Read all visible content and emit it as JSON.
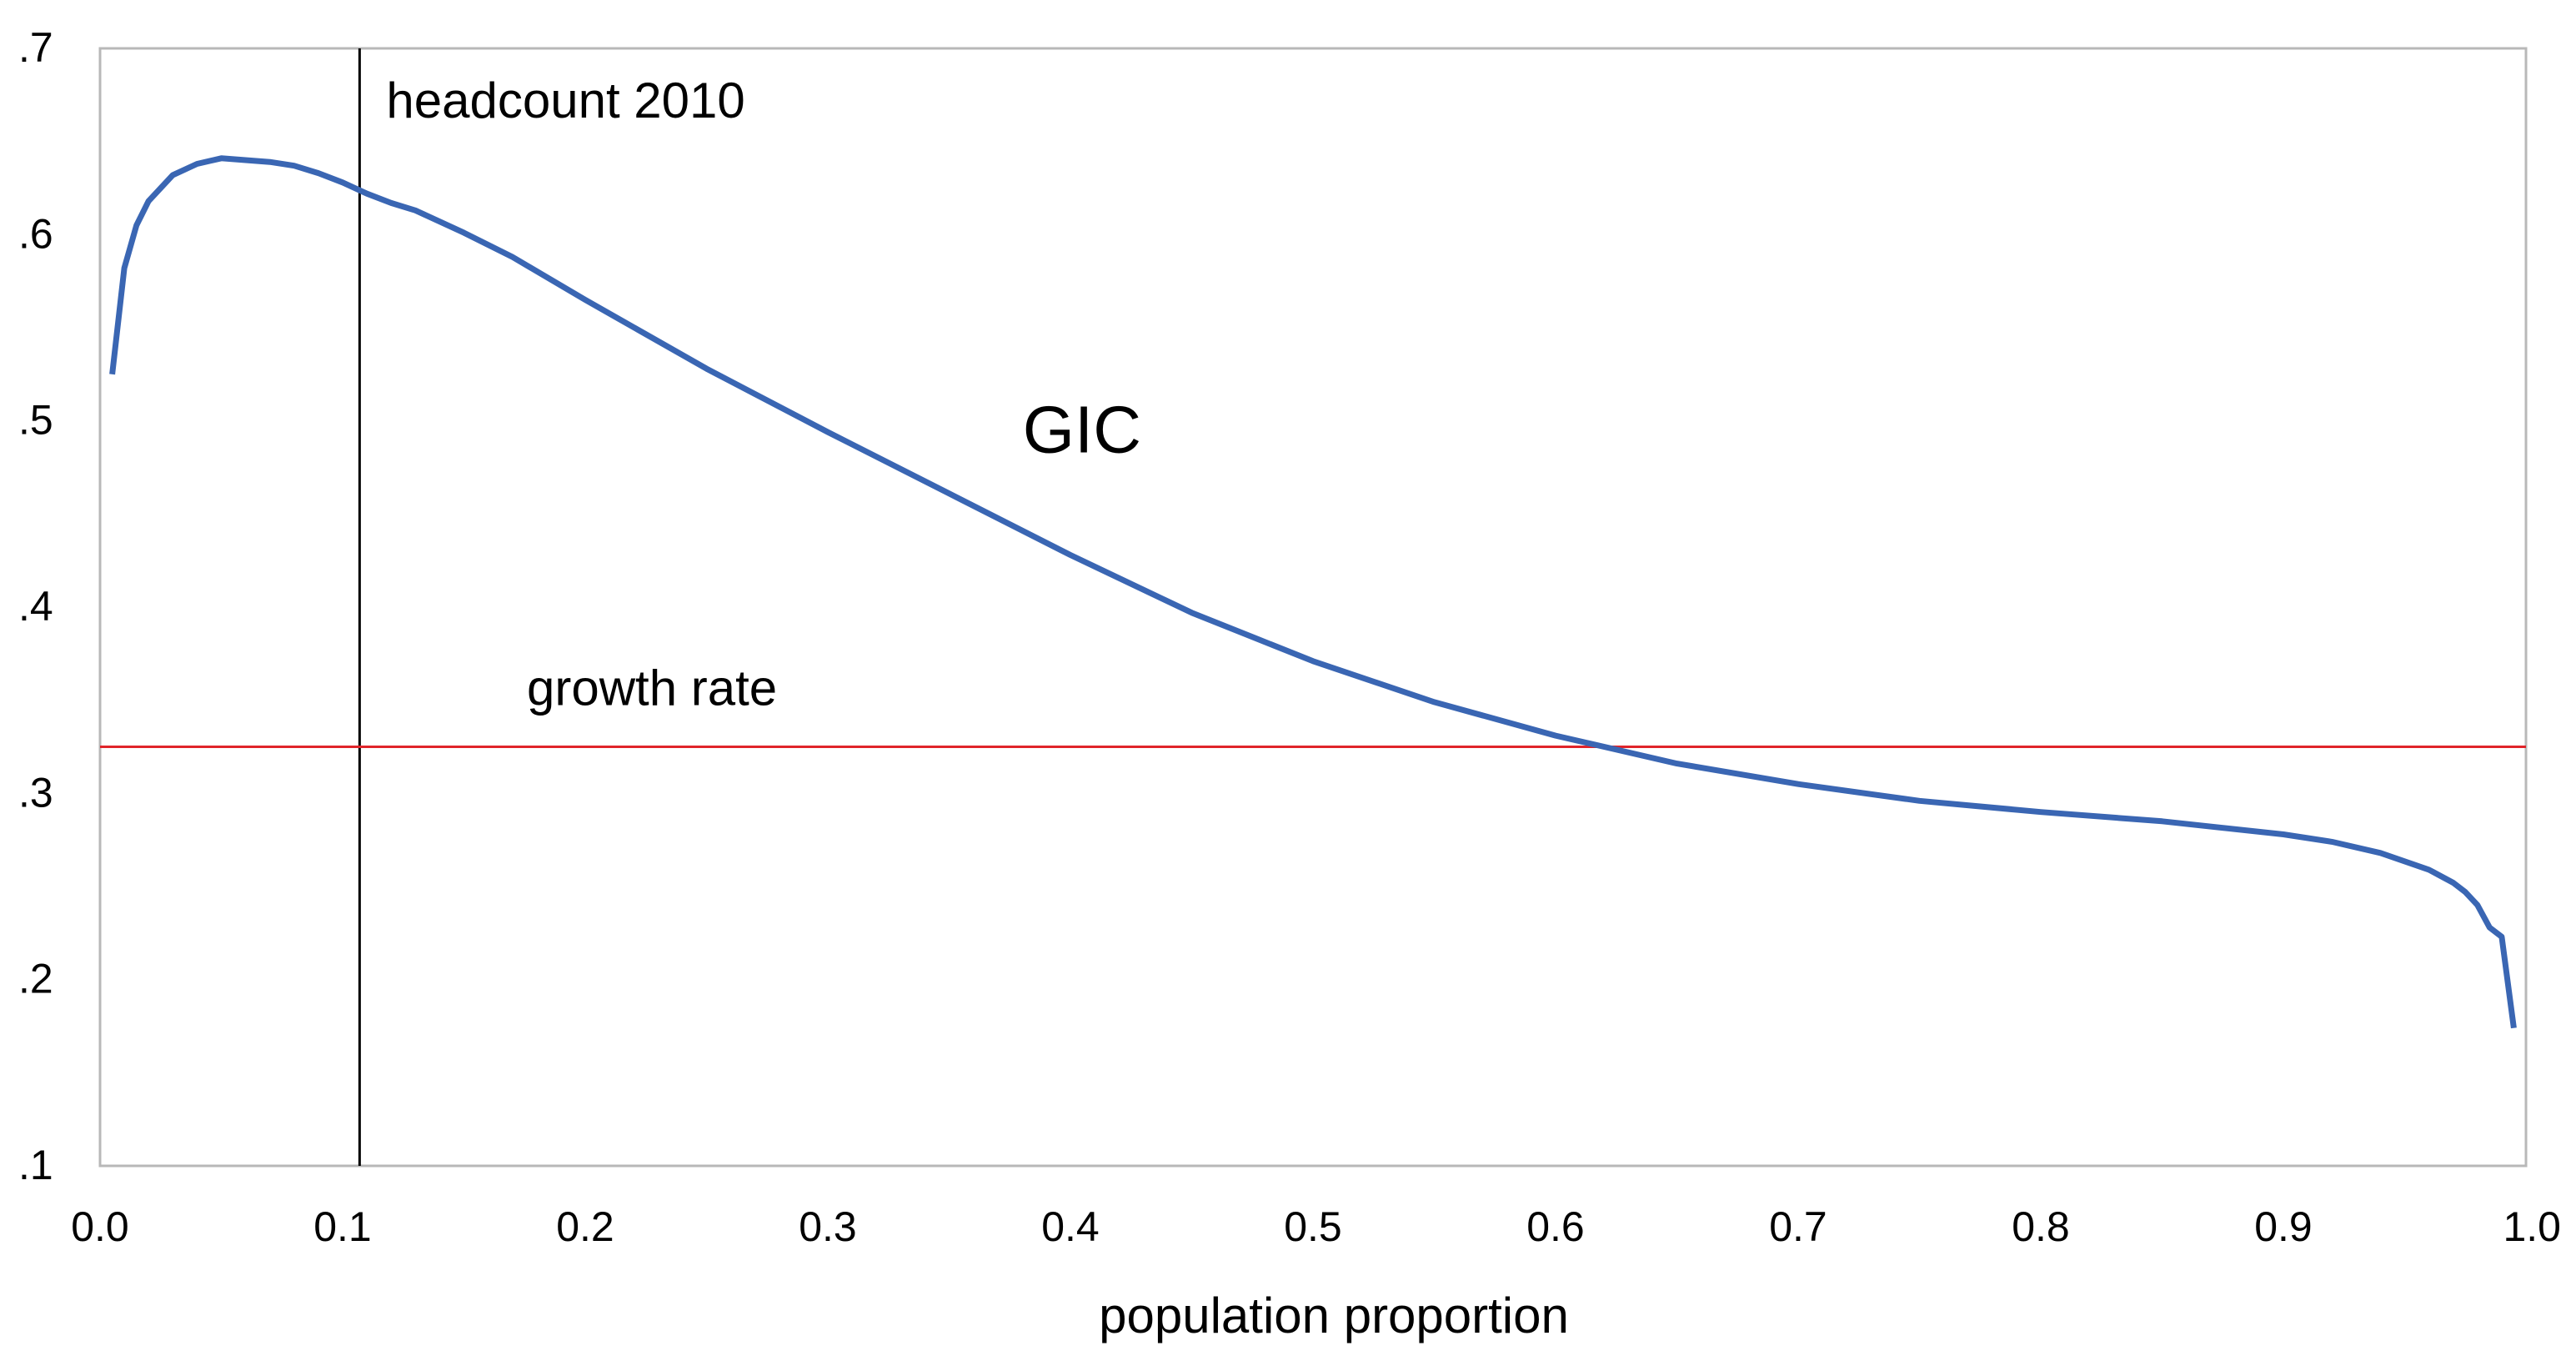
{
  "chart_data": {
    "type": "line",
    "title": "",
    "xlabel": "population proportion",
    "ylabel": "",
    "xlim": [
      0.0,
      1.0
    ],
    "ylim": [
      0.1,
      0.7
    ],
    "x_ticks": [
      0.0,
      0.1,
      0.2,
      0.3,
      0.4,
      0.5,
      0.6,
      0.7,
      0.8,
      0.9,
      1.0
    ],
    "x_tick_labels": [
      "0.0",
      "0.1",
      "0.2",
      "0.3",
      "0.4",
      "0.5",
      "0.6",
      "0.7",
      "0.8",
      "0.9",
      "1.0"
    ],
    "y_ticks": [
      0.1,
      0.2,
      0.3,
      0.4,
      0.5,
      0.6,
      0.7
    ],
    "y_tick_labels": [
      ".1",
      ".2",
      ".3",
      ".4",
      ".5",
      ".6",
      ".7"
    ],
    "grid": false,
    "colors": {
      "series": "#3a66b3",
      "growth_rate": "#e0242a",
      "headcount": "#000000",
      "frame": "#b8b8b8"
    },
    "series": [
      {
        "name": "GIC",
        "x": [
          0.005,
          0.01,
          0.015,
          0.02,
          0.03,
          0.04,
          0.05,
          0.06,
          0.07,
          0.08,
          0.09,
          0.1,
          0.11,
          0.12,
          0.13,
          0.15,
          0.17,
          0.2,
          0.25,
          0.3,
          0.35,
          0.4,
          0.45,
          0.5,
          0.55,
          0.6,
          0.65,
          0.7,
          0.75,
          0.8,
          0.85,
          0.9,
          0.92,
          0.94,
          0.96,
          0.97,
          0.975,
          0.98,
          0.985,
          0.99,
          0.995
        ],
        "values": [
          0.525,
          0.582,
          0.605,
          0.618,
          0.632,
          0.638,
          0.641,
          0.64,
          0.639,
          0.637,
          0.633,
          0.628,
          0.622,
          0.617,
          0.613,
          0.601,
          0.588,
          0.565,
          0.528,
          0.494,
          0.461,
          0.428,
          0.397,
          0.371,
          0.349,
          0.331,
          0.316,
          0.305,
          0.296,
          0.29,
          0.285,
          0.278,
          0.274,
          0.268,
          0.259,
          0.252,
          0.247,
          0.24,
          0.228,
          0.223,
          0.174
        ]
      }
    ],
    "reference_lines": {
      "growth_rate": {
        "label": "growth rate",
        "y": 0.325
      },
      "headcount": {
        "label": "headcount 2010",
        "x": 0.107
      }
    },
    "annotations": [
      {
        "text": "GIC",
        "x": 0.38,
        "y": 0.492
      }
    ]
  }
}
